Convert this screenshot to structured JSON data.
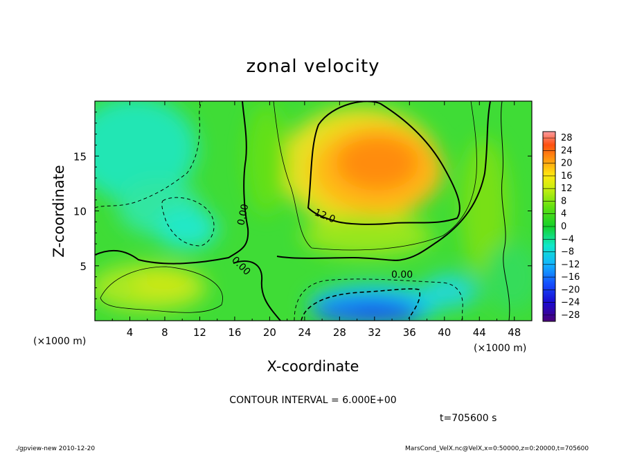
{
  "chart_data": {
    "type": "heatmap",
    "title": "zonal velocity",
    "xlabel": "X-coordinate",
    "ylabel": "Z-coordinate",
    "x_unit_note": "(×1000 m)",
    "y_unit_note": "(×1000 m)",
    "xlim": [
      0,
      50
    ],
    "ylim": [
      0,
      20
    ],
    "x_ticks": [
      "4",
      "8",
      "12",
      "16",
      "20",
      "24",
      "28",
      "32",
      "36",
      "40",
      "44",
      "48"
    ],
    "y_ticks": [
      "5",
      "10",
      "15"
    ],
    "colorbar_ticks": [
      "28",
      "24",
      "20",
      "16",
      "12",
      "8",
      "4",
      "0",
      "−4",
      "−8",
      "−12",
      "−16",
      "−20",
      "−24",
      "−28"
    ],
    "colorbar_range": [
      -30,
      30
    ],
    "contour_interval_text": "CONTOUR INTERVAL = 6.000E+00",
    "contour_labels": [
      "0.00",
      "0.00",
      "12.0",
      "0.00"
    ],
    "features": [
      {
        "name": "max",
        "x": 32,
        "z": 14,
        "value": 20
      },
      {
        "name": "min",
        "x": 32,
        "z": 1.5,
        "value": -20
      },
      {
        "name": "weak-neg-upper-left",
        "x": 5,
        "z": 15,
        "value": -9
      },
      {
        "name": "pos-lower-left",
        "x": 8,
        "z": 3,
        "value": 8
      }
    ],
    "time_text": "t=705600 s"
  },
  "footer": {
    "left": "./gpview-new   2010-12-20",
    "right": "MarsCond_VelX.nc@VelX,x=0:50000,z=0:20000,t=705600"
  },
  "colors": {
    "background": "#ffffff",
    "frame": "#000000",
    "green": "#22cc11",
    "orange": "#ff8800",
    "blue": "#1133ee",
    "cyan": "#11ddee"
  }
}
